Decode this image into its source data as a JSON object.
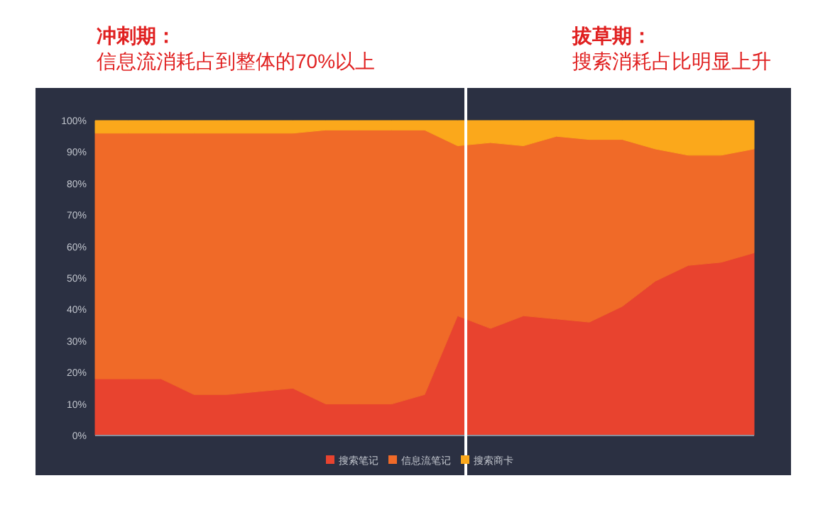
{
  "chart_data": {
    "type": "area",
    "stacked": true,
    "annotations": [
      "冲刺期：",
      "信息流消耗占到整体的70%以上",
      "拔草期：",
      "搜索消耗占比明显上升"
    ],
    "categories": [
      null,
      null,
      null,
      null,
      null,
      null,
      null,
      null,
      null,
      null,
      null,
      null,
      null,
      null,
      null,
      null,
      null,
      null,
      null,
      null,
      null
    ],
    "series": [
      {
        "name": "搜索笔记",
        "color": "#e8432f",
        "values": [
          18,
          18,
          18,
          13,
          13,
          14,
          15,
          10,
          10,
          10,
          13,
          38,
          34,
          38,
          37,
          36,
          41,
          49,
          54,
          55,
          58
        ]
      },
      {
        "name": "信息流笔记",
        "color": "#f06a28",
        "values": [
          78,
          78,
          78,
          83,
          83,
          82,
          81,
          87,
          87,
          87,
          84,
          54,
          59,
          54,
          58,
          58,
          53,
          42,
          35,
          34,
          33
        ]
      },
      {
        "name": "搜索商卡",
        "color": "#fba81b",
        "values": [
          4,
          4,
          4,
          4,
          4,
          4,
          4,
          3,
          3,
          3,
          3,
          8,
          7,
          8,
          5,
          6,
          6,
          9,
          11,
          11,
          9
        ]
      }
    ],
    "ylim": [
      0,
      100
    ],
    "yticks": [
      {
        "value": 0,
        "label": "0%"
      },
      {
        "value": 10,
        "label": "10%"
      },
      {
        "value": 20,
        "label": "20%"
      },
      {
        "value": 30,
        "label": "30%"
      },
      {
        "value": 40,
        "label": "40%"
      },
      {
        "value": 50,
        "label": "50%"
      },
      {
        "value": 60,
        "label": "60%"
      },
      {
        "value": 70,
        "label": "70%"
      },
      {
        "value": 80,
        "label": "80%"
      },
      {
        "value": 90,
        "label": "90%"
      },
      {
        "value": 100,
        "label": "100%"
      }
    ],
    "grid": false,
    "legend": "bottom"
  }
}
